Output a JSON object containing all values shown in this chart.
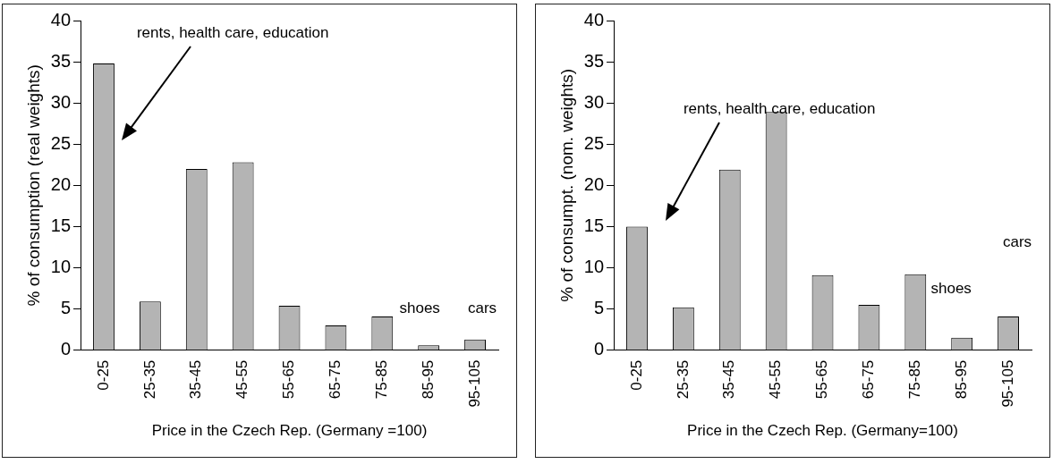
{
  "chart_data": [
    {
      "type": "bar",
      "xlabel": "Price in the Czech Rep. (Germany =100)",
      "ylabel": "% of consumption (real weights)",
      "categories": [
        "0-25",
        "25-35",
        "35-45",
        "45-55",
        "55-65",
        "65-75",
        "75-85",
        "85-95",
        "95-105"
      ],
      "values": [
        34.8,
        5.9,
        22.0,
        22.8,
        5.4,
        3.0,
        4.1,
        0.6,
        1.3
      ],
      "color": "#b4b4b4",
      "ylim": [
        0,
        40
      ],
      "yticks": [
        0,
        5,
        10,
        15,
        20,
        25,
        30,
        35,
        40
      ],
      "grid": false,
      "legend": false,
      "annotations": [
        "rents, health care, education",
        "shoes",
        "cars"
      ]
    },
    {
      "type": "bar",
      "xlabel": "Price in the Czech Rep. (Germany=100)",
      "ylabel": "% of consumpt. (nom. weights)",
      "categories": [
        "0-25",
        "25-35",
        "35-45",
        "45-55",
        "55-65",
        "65-75",
        "75-85",
        "85-95",
        "95-105"
      ],
      "values": [
        15.0,
        5.2,
        21.9,
        28.9,
        9.1,
        5.5,
        9.2,
        1.5,
        4.1
      ],
      "color": "#b4b4b4",
      "ylim": [
        0,
        40
      ],
      "yticks": [
        0,
        5,
        10,
        15,
        20,
        25,
        30,
        35,
        40
      ],
      "grid": false,
      "legend": false,
      "annotations": [
        "rents, health care, education",
        "shoes",
        "cars"
      ]
    }
  ]
}
